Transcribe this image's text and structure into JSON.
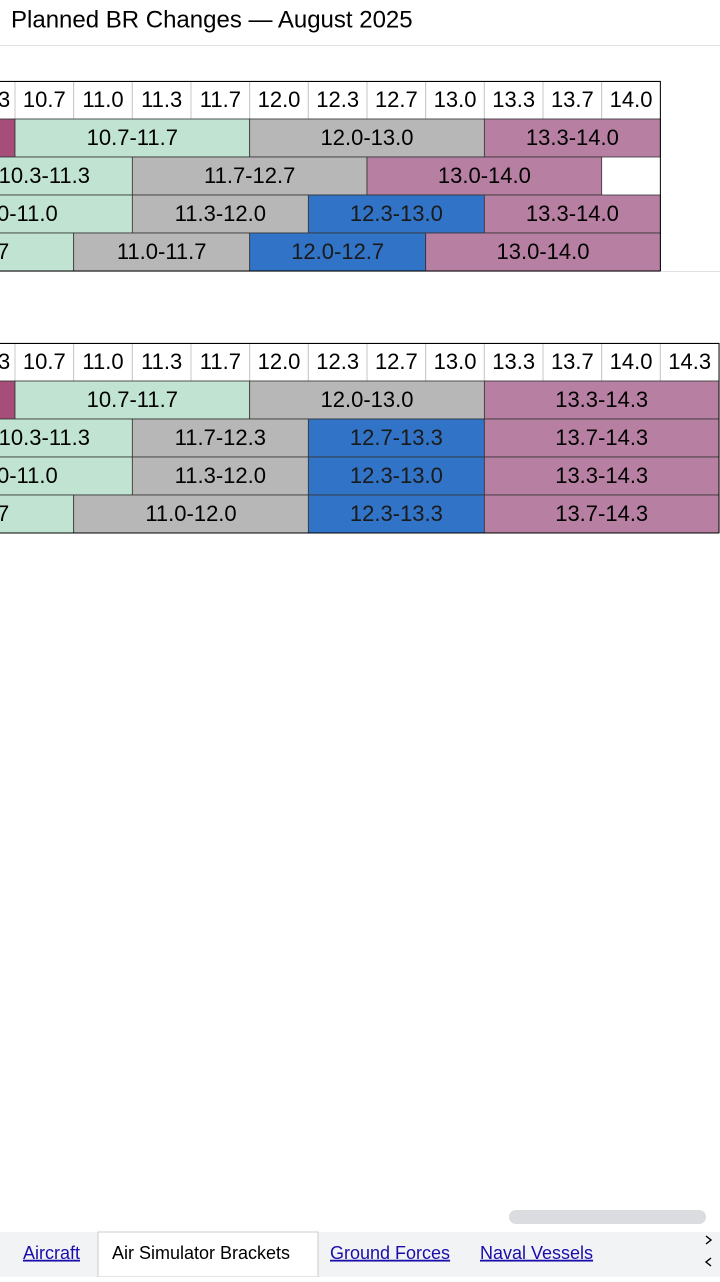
{
  "title": "Planned BR Changes — August 2025",
  "tables": [
    {
      "headers": [
        "3",
        "10.7",
        "11.0",
        "11.3",
        "11.7",
        "12.0",
        "12.3",
        "12.7",
        "13.0",
        "13.3",
        "13.7",
        "14.0"
      ],
      "rows": [
        [
          {
            "fill": "#a64d79"
          },
          {
            "label": "10.7-11.7",
            "fill": "#c1e4d2"
          },
          {
            "label": "12.0-13.0",
            "fill": "#b7b7b7"
          },
          {
            "label": "13.3-14.0",
            "fill": "#b77fa2"
          }
        ],
        [
          {
            "label": "10.3-11.3",
            "fill": "#c1e4d2"
          },
          {
            "label": "11.7-12.7",
            "fill": "#b7b7b7"
          },
          {
            "label": "13.0-14.0",
            "fill": "#b77fa2"
          }
        ],
        [
          {
            "label": "0-11.0",
            "fill": "#c1e4d2"
          },
          {
            "label": "11.3-12.0",
            "fill": "#b7b7b7"
          },
          {
            "label": "12.3-13.0",
            "fill": "#3173c6"
          },
          {
            "label": "13.3-14.0",
            "fill": "#b77fa2"
          }
        ],
        [
          {
            "label": "7",
            "fill": "#c1e4d2"
          },
          {
            "label": "11.0-11.7",
            "fill": "#b7b7b7"
          },
          {
            "label": "12.0-12.7",
            "fill": "#3173c6"
          },
          {
            "label": "13.0-14.0",
            "fill": "#b77fa2"
          }
        ]
      ]
    },
    {
      "headers": [
        "3",
        "10.7",
        "11.0",
        "11.3",
        "11.7",
        "12.0",
        "12.3",
        "12.7",
        "13.0",
        "13.3",
        "13.7",
        "14.0",
        "14.3"
      ],
      "rows": [
        [
          {
            "fill": "#a64d79"
          },
          {
            "label": "10.7-11.7",
            "fill": "#c1e4d2"
          },
          {
            "label": "12.0-13.0",
            "fill": "#b7b7b7"
          },
          {
            "label": "13.3-14.3",
            "fill": "#b77fa2"
          }
        ],
        [
          {
            "label": "10.3-11.3",
            "fill": "#c1e4d2"
          },
          {
            "label": "11.7-12.3",
            "fill": "#b7b7b7"
          },
          {
            "label": "12.7-13.3",
            "fill": "#3173c6"
          },
          {
            "label": "13.7-14.3",
            "fill": "#b77fa2"
          }
        ],
        [
          {
            "label": "0-11.0",
            "fill": "#c1e4d2"
          },
          {
            "label": "11.3-12.0",
            "fill": "#b7b7b7"
          },
          {
            "label": "12.3-13.0",
            "fill": "#3173c6"
          },
          {
            "label": "13.3-14.3",
            "fill": "#b77fa2"
          }
        ],
        [
          {
            "label": "7",
            "fill": "#c1e4d2"
          },
          {
            "label": "11.0-12.0",
            "fill": "#b7b7b7"
          },
          {
            "label": "12.3-13.3",
            "fill": "#3173c6"
          },
          {
            "label": "13.7-14.3",
            "fill": "#b77fa2"
          }
        ]
      ]
    }
  ],
  "tabs": [
    "Aircraft",
    "Air Simulator Brackets",
    "Ground Forces",
    "Naval Vessels"
  ]
}
